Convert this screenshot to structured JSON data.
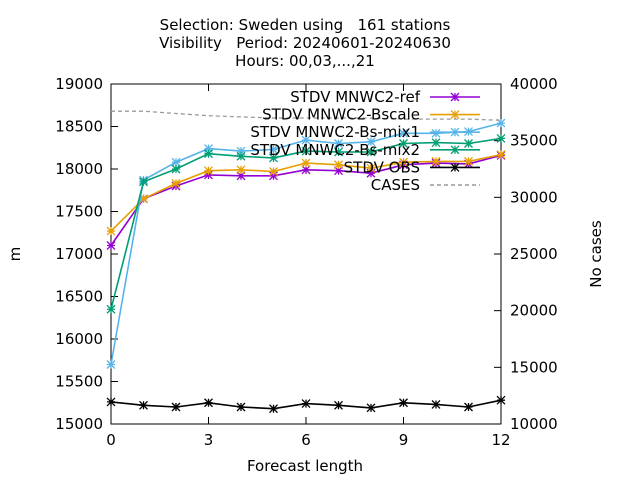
{
  "chart_data": {
    "type": "line",
    "title_lines": [
      "Selection: Sweden using   161 stations",
      "Visibility   Period: 20240601-20240630",
      "Hours: 00,03,...,21"
    ],
    "xlabel": "Forecast length",
    "ylabel": "m",
    "y2label": "No cases",
    "xlim": [
      0,
      12
    ],
    "ylim": [
      15000,
      19000
    ],
    "y2lim": [
      10000,
      40000
    ],
    "xticks": [
      0,
      3,
      6,
      9,
      12
    ],
    "yticks": [
      15000,
      15500,
      16000,
      16500,
      17000,
      17500,
      18000,
      18500,
      19000
    ],
    "y2ticks": [
      10000,
      15000,
      20000,
      25000,
      30000,
      35000,
      40000
    ],
    "legend_position": "top-right",
    "x": [
      0,
      1,
      2,
      3,
      4,
      5,
      6,
      7,
      8,
      9,
      10,
      11,
      12
    ],
    "series": [
      {
        "name": "STDV MNWC2-ref",
        "color": "#9400d3",
        "axis": "y1",
        "dash": "solid",
        "marker": "star",
        "values": [
          17100,
          17650,
          17800,
          17930,
          17920,
          17920,
          17990,
          17980,
          17950,
          18050,
          18070,
          18060,
          18160
        ]
      },
      {
        "name": "STDV MNWC2-Bscale",
        "color": "#e69f00",
        "axis": "y1",
        "dash": "solid",
        "marker": "star",
        "values": [
          17270,
          17650,
          17830,
          17980,
          17990,
          17970,
          18070,
          18050,
          18010,
          18080,
          18090,
          18090,
          18170
        ]
      },
      {
        "name": "STDV MNWC2-Bs-mix1",
        "color": "#56b4e9",
        "axis": "y1",
        "dash": "solid",
        "marker": "star",
        "values": [
          15700,
          17870,
          18080,
          18240,
          18210,
          18230,
          18340,
          18300,
          18320,
          18420,
          18420,
          18440,
          18540
        ]
      },
      {
        "name": "STDV MNWC2-Bs-mix2",
        "color": "#009e73",
        "axis": "y1",
        "dash": "solid",
        "marker": "star",
        "values": [
          16350,
          17850,
          18000,
          18180,
          18150,
          18130,
          18210,
          18200,
          18200,
          18300,
          18310,
          18300,
          18360
        ]
      },
      {
        "name": "STDV OBS",
        "color": "#000000",
        "axis": "y1",
        "dash": "solid",
        "marker": "star",
        "values": [
          15260,
          15220,
          15200,
          15250,
          15200,
          15180,
          15240,
          15220,
          15190,
          15250,
          15230,
          15200,
          15280
        ]
      },
      {
        "name": "CASES",
        "color": "#999999",
        "axis": "y2",
        "dash": "dashed",
        "marker": "none",
        "values": [
          37600,
          37600,
          37400,
          37200,
          37100,
          37000,
          37000,
          37000,
          37000,
          36900,
          36900,
          36900,
          36800
        ]
      }
    ]
  }
}
